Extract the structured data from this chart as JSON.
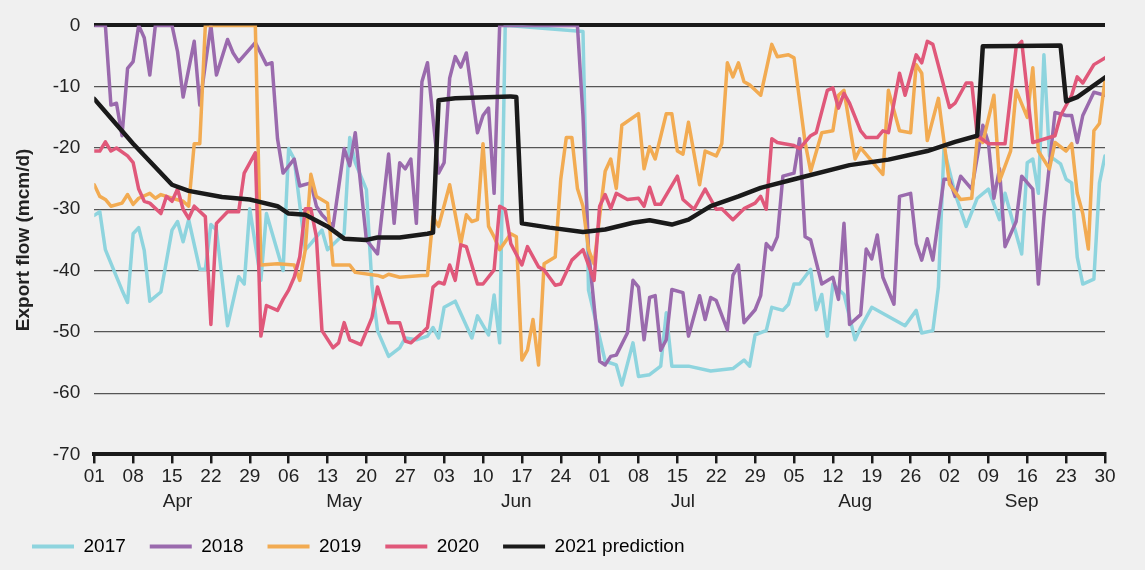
{
  "chart_data": {
    "type": "line",
    "ylabel": "Export flow (mcm/d)",
    "xlim": [
      "--04-01",
      "--09-30"
    ],
    "xticks": [
      {
        "value": "--04-01",
        "label": "01"
      },
      {
        "value": "--04-08",
        "label": "08"
      },
      {
        "value": "--04-15",
        "label": "15"
      },
      {
        "value": "--04-22",
        "label": "22"
      },
      {
        "value": "--04-29",
        "label": "29"
      },
      {
        "value": "--05-06",
        "label": "06"
      },
      {
        "value": "--05-13",
        "label": "13"
      },
      {
        "value": "--05-20",
        "label": "20"
      },
      {
        "value": "--05-27",
        "label": "27"
      },
      {
        "value": "--06-03",
        "label": "03"
      },
      {
        "value": "--06-10",
        "label": "10"
      },
      {
        "value": "--06-17",
        "label": "17"
      },
      {
        "value": "--06-24",
        "label": "24"
      },
      {
        "value": "--07-01",
        "label": "01"
      },
      {
        "value": "--07-08",
        "label": "08"
      },
      {
        "value": "--07-15",
        "label": "15"
      },
      {
        "value": "--07-22",
        "label": "22"
      },
      {
        "value": "--07-29",
        "label": "29"
      },
      {
        "value": "--08-05",
        "label": "05"
      },
      {
        "value": "--08-12",
        "label": "12"
      },
      {
        "value": "--08-19",
        "label": "19"
      },
      {
        "value": "--08-26",
        "label": "26"
      },
      {
        "value": "--09-02",
        "label": "02"
      },
      {
        "value": "--09-09",
        "label": "09"
      },
      {
        "value": "--09-16",
        "label": "16"
      },
      {
        "value": "--09-23",
        "label": "23"
      },
      {
        "value": "--09-30",
        "label": "30"
      }
    ],
    "x2lim": [
      "--04-01",
      "--09-30"
    ],
    "x2ticks": [
      {
        "value": "--04-16",
        "label": "Apr"
      },
      {
        "value": "--05-16",
        "label": "May"
      },
      {
        "value": "--06-16",
        "label": "Jun"
      },
      {
        "value": "--07-16",
        "label": "Jul"
      },
      {
        "value": "--08-16",
        "label": "Aug"
      },
      {
        "value": "--09-15",
        "label": "Sep"
      }
    ],
    "ylim": [
      -70,
      0
    ],
    "yticks": [
      -70,
      -60,
      -50,
      -40,
      -30,
      -20,
      -10,
      0
    ],
    "grid": "y",
    "legend": "bottom left",
    "series": [
      {
        "name": "2017",
        "color": "#8ed4de",
        "x": [
          "--04-01",
          "--04-02",
          "--04-03",
          "--04-06",
          "--04-07",
          "--04-08",
          "--04-09",
          "--04-10",
          "--04-11",
          "--04-13",
          "--04-15",
          "--04-16",
          "--04-17",
          "--04-18",
          "--04-20",
          "--04-21",
          "--04-22",
          "--04-23",
          "--04-25",
          "--04-27",
          "--04-28",
          "--04-29",
          "--05-01",
          "--05-02",
          "--05-05",
          "--05-06",
          "--05-07",
          "--05-09",
          "--05-10",
          "--05-12",
          "--05-13",
          "--05-16",
          "--05-17",
          "--05-18",
          "--05-20",
          "--05-21",
          "--05-22",
          "--05-24",
          "--05-26",
          "--05-27",
          "--05-29",
          "--05-31",
          "--06-01",
          "--06-02",
          "--06-03",
          "--06-05",
          "--06-08",
          "--06-09",
          "--06-11",
          "--06-12",
          "--06-13",
          "--06-14",
          "--06-28",
          "--06-29",
          "--07-02",
          "--07-04",
          "--07-05",
          "--07-07",
          "--07-08",
          "--07-10",
          "--07-12",
          "--07-13",
          "--07-14",
          "--07-17",
          "--07-21",
          "--07-25",
          "--07-27",
          "--07-28",
          "--07-29",
          "--07-31",
          "--08-01",
          "--08-03",
          "--08-04",
          "--08-05",
          "--08-06",
          "--08-08",
          "--08-09",
          "--08-10",
          "--08-11",
          "--08-12",
          "--08-14",
          "--08-16",
          "--08-17",
          "--08-19",
          "--08-25",
          "--08-27",
          "--08-28",
          "--08-30",
          "--08-31",
          "--09-01",
          "--09-03",
          "--09-05",
          "--09-07",
          "--09-09",
          "--09-11",
          "--09-12",
          "--09-15",
          "--09-16",
          "--09-17",
          "--09-18",
          "--09-19",
          "--09-20",
          "--09-22",
          "--09-23",
          "--09-24",
          "--09-25",
          "--09-26",
          "--09-28",
          "--09-29",
          "--09-30"
        ],
        "values": [
          -31,
          -30.4,
          -36.6,
          -43.2,
          -45.2,
          -34,
          -33,
          -36.7,
          -45,
          -43.5,
          -33.4,
          -32,
          -35.3,
          -31.7,
          -39.8,
          -39.8,
          -32.5,
          -33.4,
          -49,
          -41,
          -42.2,
          -29.9,
          -41.6,
          -30.7,
          -40,
          -20.1,
          -21.8,
          -36.6,
          -35.6,
          -33.4,
          -36.6,
          -34,
          -18.3,
          -22.4,
          -26.8,
          -42.4,
          -49.8,
          -54,
          -52.6,
          -51,
          -51.3,
          -50.7,
          -49.3,
          -51,
          -46,
          -45,
          -51,
          -47.4,
          -50.5,
          -44,
          -51.8,
          0,
          -1,
          -43.2,
          -54.8,
          -55.4,
          -58.7,
          -51.8,
          -57.3,
          -57,
          -55.6,
          -46.9,
          -55.6,
          -55.6,
          -56.4,
          -56,
          -54.6,
          -55.6,
          -50.5,
          -49.8,
          -46,
          -46.5,
          -45.5,
          -42.2,
          -42.2,
          -39.8,
          -46.4,
          -43.9,
          -50.7,
          -42.2,
          -43.9,
          -51.3,
          -49.3,
          -46,
          -49,
          -46.5,
          -50.2,
          -49.8,
          -42.7,
          -20.1,
          -27.4,
          -32.8,
          -28.2,
          -26.7,
          -31.7,
          -27.4,
          -37.3,
          -22.4,
          -21.8,
          -27.4,
          -4.8,
          -21.3,
          -22.6,
          -25.1,
          -25.7,
          -37.8,
          -42.2,
          -41.4,
          -25.7,
          -21.3
        ]
      },
      {
        "name": "2018",
        "color": "#9a6aad",
        "x": [
          "--04-01",
          "--04-03",
          "--04-04",
          "--04-05",
          "--04-06",
          "--04-07",
          "--04-08",
          "--04-09",
          "--04-10",
          "--04-11",
          "--04-12",
          "--04-15",
          "--04-16",
          "--04-17",
          "--04-19",
          "--04-20",
          "--04-21",
          "--04-22",
          "--04-23",
          "--04-25",
          "--04-26",
          "--04-27",
          "--04-30",
          "--05-02",
          "--05-03",
          "--05-04",
          "--05-05",
          "--05-07",
          "--05-08",
          "--05-10",
          "--05-11",
          "--05-12",
          "--05-14",
          "--05-16",
          "--05-17",
          "--05-18",
          "--05-20",
          "--05-22",
          "--05-24",
          "--05-25",
          "--05-26",
          "--05-27",
          "--05-28",
          "--05-29",
          "--05-30",
          "--05-31",
          "--06-02",
          "--06-03",
          "--06-04",
          "--06-05",
          "--06-06",
          "--06-07",
          "--06-09",
          "--06-10",
          "--06-11",
          "--06-12",
          "--06-13",
          "--06-27",
          "--06-28",
          "--06-29",
          "--07-01",
          "--07-02",
          "--07-03",
          "--07-04",
          "--07-06",
          "--07-07",
          "--07-08",
          "--07-09",
          "--07-10",
          "--07-11",
          "--07-12",
          "--07-13",
          "--07-14",
          "--07-16",
          "--07-17",
          "--07-19",
          "--07-20",
          "--07-21",
          "--07-22",
          "--07-24",
          "--07-25",
          "--07-26",
          "--07-27",
          "--07-29",
          "--07-30",
          "--07-31",
          "--08-01",
          "--08-02",
          "--08-03",
          "--08-05",
          "--08-06",
          "--08-07",
          "--08-08",
          "--08-10",
          "--08-12",
          "--08-13",
          "--08-14",
          "--08-15",
          "--08-17",
          "--08-18",
          "--08-19",
          "--08-20",
          "--08-21",
          "--08-23",
          "--08-24",
          "--08-26",
          "--08-27",
          "--08-28",
          "--08-29",
          "--08-30",
          "--09-01",
          "--09-02",
          "--09-03",
          "--09-04",
          "--09-06",
          "--09-08",
          "--09-09",
          "--09-10",
          "--09-11",
          "--09-12",
          "--09-14",
          "--09-15",
          "--09-17",
          "--09-18",
          "--09-19",
          "--09-21",
          "--09-23",
          "--09-24",
          "--09-25",
          "--09-26",
          "--09-28",
          "--09-30"
        ],
        "values": [
          0,
          0,
          -13,
          -12.7,
          -18,
          -7,
          -5.9,
          0,
          -2,
          -8.1,
          0,
          0,
          -4.3,
          -11.7,
          -2.6,
          -13,
          -6.4,
          0,
          -8.1,
          -2.3,
          -4.5,
          -5.9,
          -2.8,
          -6.4,
          -6.1,
          -18.5,
          -24.1,
          -21.8,
          -26.2,
          -25.7,
          -29.5,
          -30.9,
          -32.8,
          -20.1,
          -22.9,
          -17.5,
          -35,
          -37.3,
          -21,
          -32.3,
          -22.4,
          -23.4,
          -21.8,
          -32.3,
          -9.2,
          -6.1,
          -24.1,
          -22.4,
          -8.6,
          -5.1,
          -6.8,
          -4.5,
          -17.5,
          -14.7,
          -13.5,
          -27.4,
          0,
          0,
          -14.7,
          -36.6,
          -54.8,
          -55.4,
          -54,
          -53.8,
          -50.2,
          -41.6,
          -42.7,
          -51.3,
          -44.4,
          -44.1,
          -53,
          -51.3,
          -43.1,
          -43.6,
          -50.7,
          -44.1,
          -48,
          -44.4,
          -44.9,
          -49.7,
          -40.8,
          -39.1,
          -48.5,
          -46.4,
          -44.1,
          -35.6,
          -36.6,
          -34.5,
          -24.6,
          -24.1,
          -18.5,
          -34.5,
          -35,
          -42.2,
          -41.1,
          -44.7,
          -32.3,
          -48.8,
          -47.2,
          -36.5,
          -38.1,
          -34.2,
          -41.1,
          -45.5,
          -27.9,
          -27.4,
          -35.6,
          -38.3,
          -34.8,
          -38.3,
          -25.1,
          -25.1,
          -27.9,
          -24.6,
          -26.7,
          -16.3,
          -19.1,
          -28.2,
          -23.4,
          -36.1,
          -32,
          -24.6,
          -26.7,
          -42.2,
          -31.2,
          -14.2,
          -14.7,
          -14.7,
          -19.1,
          -14.7,
          -10.9,
          -11.4
        ]
      },
      {
        "name": "2019",
        "color": "#f2ab52",
        "x": [
          "--04-01",
          "--04-02",
          "--04-03",
          "--04-04",
          "--04-06",
          "--04-07",
          "--04-08",
          "--04-09",
          "--04-11",
          "--04-12",
          "--04-13",
          "--04-15",
          "--04-17",
          "--04-18",
          "--04-19",
          "--04-20",
          "--04-21",
          "--04-30",
          "--05-01",
          "--05-04",
          "--05-07",
          "--05-08",
          "--05-09",
          "--05-10",
          "--05-11",
          "--05-13",
          "--05-14",
          "--05-17",
          "--05-18",
          "--05-22",
          "--05-23",
          "--05-24",
          "--05-26",
          "--05-30",
          "--05-31",
          "--06-01",
          "--06-02",
          "--06-04",
          "--06-06",
          "--06-07",
          "--06-08",
          "--06-09",
          "--06-10",
          "--06-11",
          "--06-12",
          "--06-13",
          "--06-15",
          "--06-16",
          "--06-17",
          "--06-18",
          "--06-19",
          "--06-20",
          "--06-21",
          "--06-23",
          "--06-24",
          "--06-25",
          "--06-26",
          "--06-27",
          "--06-28",
          "--06-29",
          "--06-30",
          "--07-01",
          "--07-02",
          "--07-03",
          "--07-04",
          "--07-05",
          "--07-08",
          "--07-09",
          "--07-10",
          "--07-11",
          "--07-13",
          "--07-14",
          "--07-15",
          "--07-16",
          "--07-17",
          "--07-19",
          "--07-20",
          "--07-22",
          "--07-23",
          "--07-24",
          "--07-25",
          "--07-26",
          "--07-27",
          "--07-28",
          "--07-30",
          "--08-01",
          "--08-02",
          "--08-04",
          "--08-05",
          "--08-07",
          "--08-08",
          "--08-10",
          "--08-12",
          "--08-13",
          "--08-14",
          "--08-16",
          "--08-17",
          "--08-21",
          "--08-22",
          "--08-24",
          "--08-26",
          "--08-27",
          "--08-28",
          "--08-29",
          "--08-31",
          "--09-02",
          "--09-04",
          "--09-06",
          "--09-07",
          "--09-08",
          "--09-10",
          "--09-11",
          "--09-13",
          "--09-14",
          "--09-16",
          "--09-17",
          "--09-18",
          "--09-20",
          "--09-21",
          "--09-23",
          "--09-24",
          "--09-25",
          "--09-26",
          "--09-27",
          "--09-28",
          "--09-29",
          "--09-30"
        ],
        "values": [
          -26,
          -27.9,
          -28.4,
          -29.5,
          -29,
          -27.6,
          -29.2,
          -28.2,
          -27.4,
          -28.2,
          -27.6,
          -28.2,
          -28.7,
          -29.5,
          -19.3,
          -19.3,
          0,
          0,
          -39.1,
          -38.9,
          -39.1,
          -41.6,
          -36.6,
          -24.3,
          -27.9,
          -29,
          -39.1,
          -39.1,
          -40.3,
          -40.8,
          -41.1,
          -40.6,
          -41.1,
          -40.8,
          -40.8,
          -31.2,
          -32.8,
          -26,
          -35.6,
          -30.9,
          -32,
          -31.7,
          -19.3,
          -32.8,
          -34.5,
          -36.6,
          -34,
          -34.5,
          -54.6,
          -53,
          -48,
          -55.4,
          -38.9,
          -37.8,
          -25.1,
          -18.3,
          -18.3,
          -26.6,
          -29.5,
          -36.6,
          -38.9,
          -31.2,
          -23.8,
          -21.8,
          -26.6,
          -16.3,
          -14.4,
          -23.4,
          -19.8,
          -21.8,
          -14.4,
          -14.4,
          -20.5,
          -21,
          -15.8,
          -26,
          -20.5,
          -21.3,
          -19.3,
          -6.1,
          -8.4,
          -6.1,
          -9.2,
          -9.7,
          -11.4,
          -3.1,
          -5.1,
          -4.8,
          -5.3,
          -19.1,
          -23.8,
          -17.5,
          -17.2,
          -11.4,
          -10.6,
          -21.8,
          -20,
          -24.3,
          -10.6,
          -17.2,
          -17.5,
          -6.4,
          -7.8,
          -18.8,
          -11.9,
          -25.9,
          -28.4,
          -28.2,
          -18.3,
          -19.1,
          -11.4,
          -25.4,
          -20.5,
          -10.6,
          -15,
          -6.9,
          -20.5,
          -23.4,
          -19.1,
          -20.5,
          -19.3,
          -27.4,
          -30.7,
          -36.5,
          -17.2,
          -16,
          -8.9
        ]
      },
      {
        "name": "2020",
        "color": "#e0587a",
        "x": [
          "--04-01",
          "--04-02",
          "--04-03",
          "--04-04",
          "--04-05",
          "--04-07",
          "--04-08",
          "--04-09",
          "--04-10",
          "--04-11",
          "--04-13",
          "--04-14",
          "--04-15",
          "--04-16",
          "--04-17",
          "--04-18",
          "--04-19",
          "--04-21",
          "--04-22",
          "--04-23",
          "--04-25",
          "--04-27",
          "--04-28",
          "--04-30",
          "--05-01",
          "--05-02",
          "--05-04",
          "--05-05",
          "--05-06",
          "--05-07",
          "--05-08",
          "--05-09",
          "--05-10",
          "--05-11",
          "--05-12",
          "--05-14",
          "--05-15",
          "--05-16",
          "--05-17",
          "--05-19",
          "--05-21",
          "--05-22",
          "--05-24",
          "--05-26",
          "--05-27",
          "--05-28",
          "--05-30",
          "--05-31",
          "--06-01",
          "--06-02",
          "--06-03",
          "--06-04",
          "--06-05",
          "--06-06",
          "--06-07",
          "--06-09",
          "--06-10",
          "--06-12",
          "--06-13",
          "--06-14",
          "--06-15",
          "--06-17",
          "--06-18",
          "--06-20",
          "--06-21",
          "--06-23",
          "--06-24",
          "--06-26",
          "--06-28",
          "--06-30",
          "--07-01",
          "--07-02",
          "--07-03",
          "--07-04",
          "--07-06",
          "--07-08",
          "--07-09",
          "--07-10",
          "--07-11",
          "--07-12",
          "--07-15",
          "--07-16",
          "--07-18",
          "--07-20",
          "--07-22",
          "--07-23",
          "--07-25",
          "--07-27",
          "--07-29",
          "--07-30",
          "--07-31",
          "--08-01",
          "--08-02",
          "--08-05",
          "--08-06",
          "--08-08",
          "--08-09",
          "--08-11",
          "--08-12",
          "--08-13",
          "--08-14",
          "--08-15",
          "--08-17",
          "--08-18",
          "--08-20",
          "--08-21",
          "--08-22",
          "--08-24",
          "--08-25",
          "--08-27",
          "--08-28",
          "--08-29",
          "--08-30",
          "--09-02",
          "--09-03",
          "--09-05",
          "--09-06",
          "--09-07",
          "--09-09",
          "--09-12",
          "--09-14",
          "--09-15",
          "--09-17",
          "--09-21",
          "--09-22",
          "--09-24",
          "--09-25",
          "--09-26",
          "--09-28",
          "--09-30"
        ],
        "values": [
          -20.5,
          -20.5,
          -19,
          -20.5,
          -20,
          -21.3,
          -22.4,
          -26.7,
          -28.7,
          -29,
          -30.7,
          -27.9,
          -28.7,
          -26.7,
          -30,
          -31.5,
          -29.5,
          -31.2,
          -48.8,
          -32.3,
          -30.4,
          -30.4,
          -24.1,
          -20.8,
          -50.7,
          -45.7,
          -46.5,
          -44.7,
          -43.2,
          -41.1,
          -37.8,
          -29.9,
          -29.9,
          -34.5,
          -49.8,
          -52.6,
          -51.8,
          -48.5,
          -51.3,
          -52.1,
          -47.7,
          -42.7,
          -48.5,
          -48.5,
          -51.5,
          -51.8,
          -50.2,
          -49.3,
          -42.7,
          -41.9,
          -42.2,
          -39.1,
          -41.6,
          -35.8,
          -36.1,
          -42.2,
          -42.2,
          -39.9,
          -29.5,
          -30,
          -35.6,
          -39.1,
          -36.1,
          -39.4,
          -39.9,
          -42.4,
          -42.2,
          -38.3,
          -36.6,
          -41.6,
          -29.5,
          -27.6,
          -29.9,
          -27.4,
          -28.4,
          -28.2,
          -29.5,
          -26.4,
          -29.2,
          -29.2,
          -24.6,
          -28.4,
          -30,
          -26.7,
          -30,
          -29.9,
          -31.7,
          -29.9,
          -29,
          -27.9,
          -30,
          -18.5,
          -19.1,
          -19.6,
          -20.1,
          -18,
          -17.5,
          -10.6,
          -10.2,
          -13.5,
          -11.1,
          -12.7,
          -17.2,
          -18.3,
          -18.3,
          -17.2,
          -17.5,
          -7.8,
          -11.4,
          -4.8,
          -6.1,
          -2.6,
          -3.1,
          -13.4,
          -12.7,
          -9.4,
          -9.4,
          -18,
          -19.3,
          -19.3,
          -3.6,
          -2.6,
          -19.1,
          -18,
          -14.7,
          -11.4,
          -8.4,
          -9.4,
          -6.4,
          -5.3
        ]
      },
      {
        "name": "2021 prediction",
        "color": "#1a1a1a",
        "x": [
          "--04-01",
          "--04-08",
          "--04-15",
          "--04-18",
          "--04-24",
          "--04-29",
          "--05-04",
          "--05-06",
          "--05-09",
          "--05-13",
          "--05-16",
          "--05-20",
          "--05-22",
          "--05-26",
          "--05-31",
          "--06-01",
          "--06-02",
          "--06-05",
          "--06-15",
          "--06-16",
          "--06-17",
          "--06-22",
          "--06-28",
          "--07-02",
          "--07-07",
          "--07-10",
          "--07-14",
          "--07-17",
          "--07-21",
          "--07-26",
          "--07-30",
          "--08-05",
          "--08-15",
          "--08-22",
          "--08-29",
          "--09-03",
          "--09-07",
          "--09-08",
          "--09-22",
          "--09-23",
          "--09-25",
          "--09-30"
        ],
        "values": [
          -12,
          -19.3,
          -26,
          -27,
          -28,
          -28.4,
          -29.5,
          -30.7,
          -30.9,
          -32.8,
          -34.8,
          -35,
          -34.6,
          -34.6,
          -34,
          -33.8,
          -12.2,
          -11.9,
          -11.6,
          -11.7,
          -32.3,
          -33,
          -33.7,
          -33.3,
          -32.2,
          -31.8,
          -32.5,
          -31.7,
          -29.5,
          -27.9,
          -26.5,
          -25.1,
          -22.8,
          -21.9,
          -20.5,
          -19,
          -18,
          -3.4,
          -3.3,
          -12.4,
          -11.7,
          -8.5
        ]
      }
    ]
  }
}
